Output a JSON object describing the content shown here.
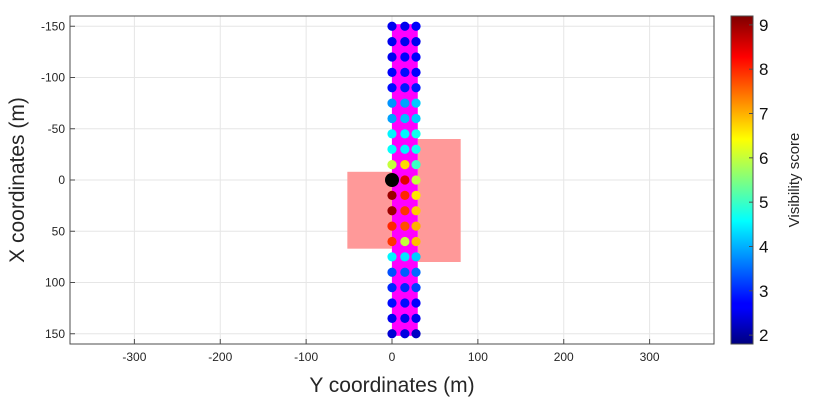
{
  "chart_data": {
    "type": "scatter",
    "title": "",
    "xlabel": "Y coordinates (m)",
    "ylabel": "X coordinates (m)",
    "xlim": [
      -375,
      375
    ],
    "ylim": [
      -160,
      160
    ],
    "y_reversed": true,
    "grid": true,
    "x_ticks": [
      "-300",
      "-200",
      "-100",
      "0",
      "100",
      "200",
      "300"
    ],
    "y_ticks": [
      "-150",
      "-100",
      "-50",
      "0",
      "50",
      "100",
      "150"
    ],
    "colorbar": {
      "label": "Visibility score",
      "range": [
        1.8,
        9.2
      ],
      "ticks": [
        "2",
        "3",
        "4",
        "5",
        "6",
        "7",
        "8",
        "9"
      ],
      "colormap": "jet"
    },
    "road": {
      "y_range": [
        0,
        30
      ],
      "x_range": [
        -152,
        152
      ],
      "color": "#ff00ff"
    },
    "obstacles": [
      {
        "y_range": [
          -52,
          0
        ],
        "x_range": [
          -8,
          67
        ],
        "color": "#ff9999"
      },
      {
        "y_range": [
          30,
          80
        ],
        "x_range": [
          -40,
          80
        ],
        "color": "#ff9999"
      }
    ],
    "highlight_point": {
      "y": 0,
      "x": 0,
      "color": "#000000"
    },
    "columns_y": [
      0,
      15,
      28
    ],
    "rows_x": [
      -150,
      -135,
      -120,
      -105,
      -90,
      -75,
      -60,
      -45,
      -30,
      -15,
      0,
      15,
      30,
      45,
      60,
      75,
      90,
      105,
      120,
      135,
      150
    ],
    "scores": [
      [
        2.6,
        2.6,
        2.7
      ],
      [
        2.6,
        2.6,
        2.6
      ],
      [
        2.6,
        2.7,
        2.7
      ],
      [
        2.7,
        2.8,
        2.7
      ],
      [
        2.8,
        2.9,
        2.9
      ],
      [
        3.8,
        3.9,
        4.2
      ],
      [
        3.9,
        4.1,
        4.2
      ],
      [
        4.5,
        4.5,
        4.7
      ],
      [
        4.6,
        4.5,
        4.7
      ],
      [
        6.0,
        6.7,
        5.0
      ],
      [
        1.9,
        8.5,
        6.0
      ],
      [
        9.0,
        8.0,
        6.6
      ],
      [
        9.0,
        7.9,
        6.8
      ],
      [
        8.0,
        7.7,
        7.0
      ],
      [
        7.9,
        6.0,
        6.9
      ],
      [
        4.5,
        4.4,
        4.2
      ],
      [
        3.3,
        3.4,
        3.5
      ],
      [
        3.0,
        3.0,
        3.2
      ],
      [
        2.8,
        2.8,
        2.7
      ],
      [
        2.6,
        2.6,
        2.6
      ],
      [
        2.4,
        2.5,
        2.3
      ]
    ]
  }
}
